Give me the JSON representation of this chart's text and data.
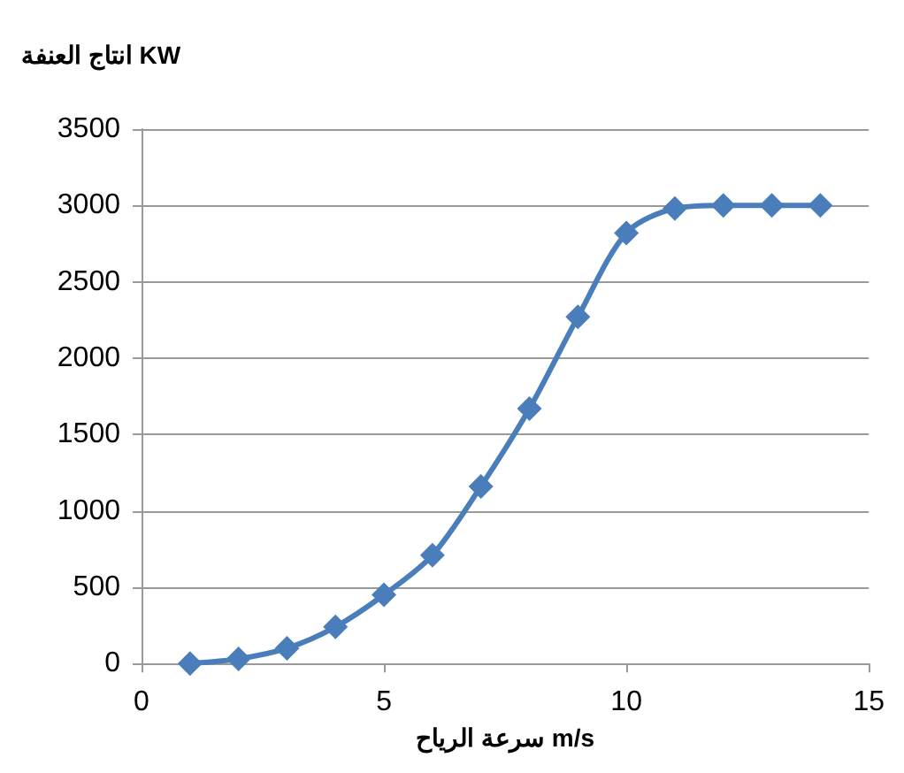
{
  "chart_data": {
    "type": "line",
    "xlabel": "سرعة الرياح m/s",
    "ylabel": "انتاج العنفة KW",
    "x": [
      1,
      2,
      3,
      4,
      5,
      6,
      7,
      8,
      9,
      10,
      11,
      12,
      13,
      14
    ],
    "series": [
      {
        "color": "#4a7ebb",
        "values": [
          0,
          30,
          100,
          240,
          450,
          710,
          1160,
          1670,
          2270,
          2820,
          2980,
          3000,
          3000,
          3000
        ]
      }
    ],
    "xlim": [
      0,
      15
    ],
    "xticks": [
      0,
      5,
      10,
      15
    ],
    "ylim": [
      0,
      3500
    ],
    "yticks": [
      0,
      500,
      1000,
      1500,
      2000,
      2500,
      3000,
      3500
    ],
    "grid": "y",
    "marker": "diamond",
    "line_style": "solid"
  }
}
